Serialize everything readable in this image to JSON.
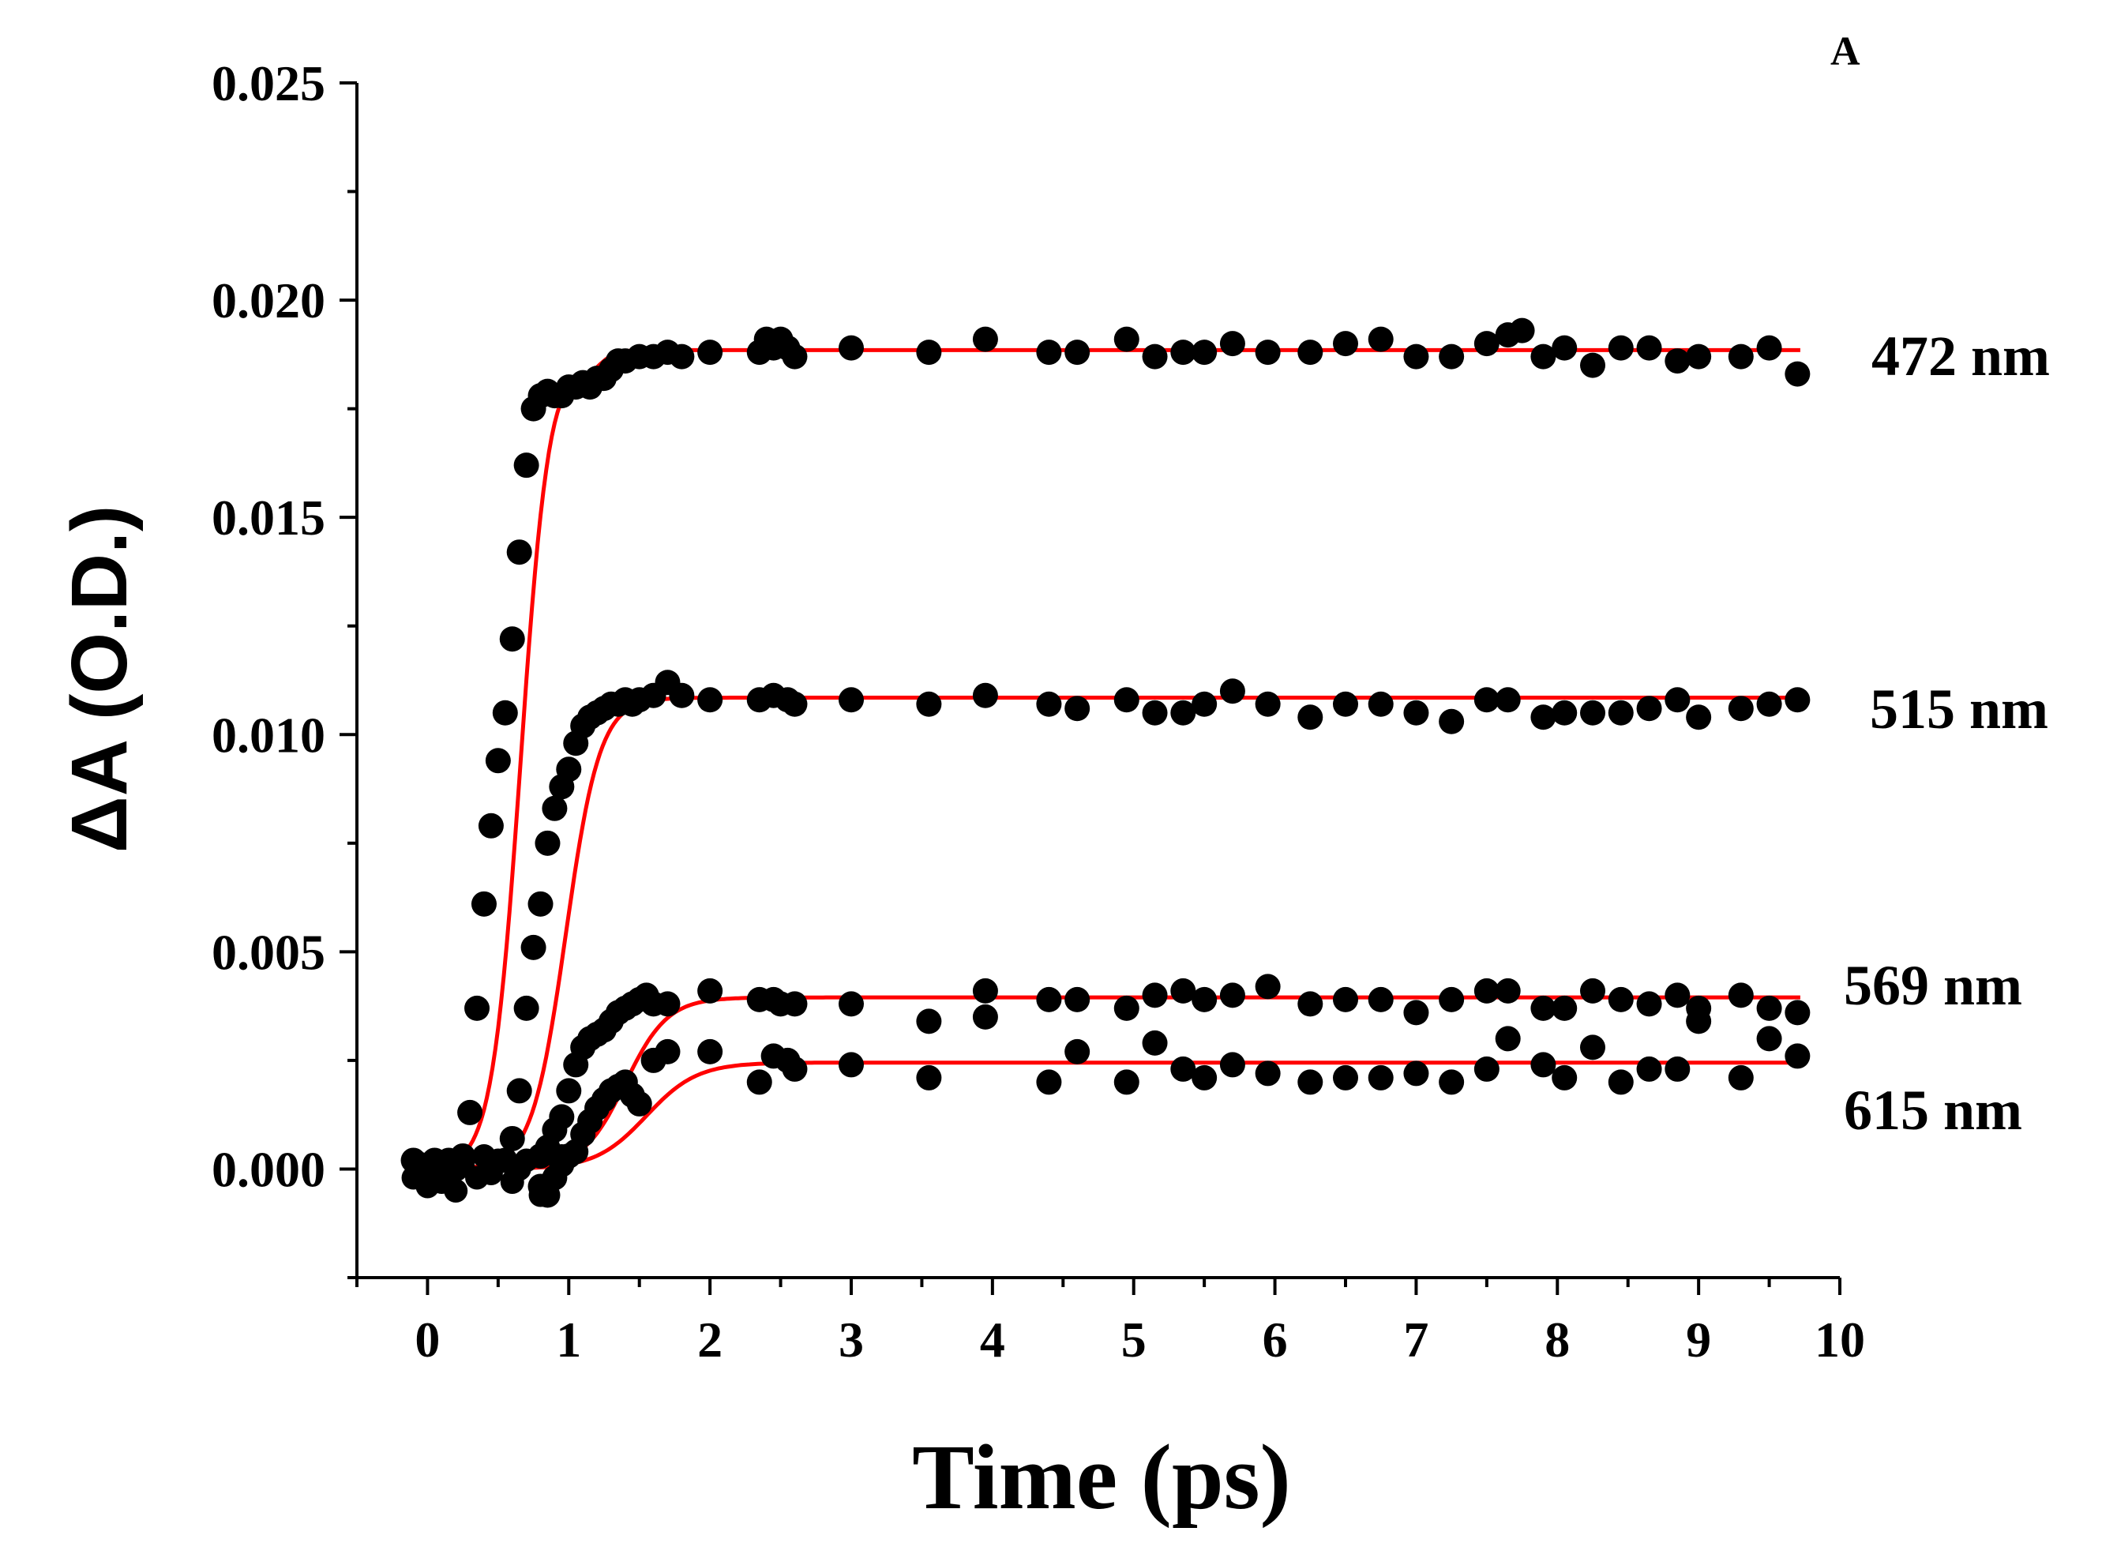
{
  "chart_data": {
    "type": "scatter",
    "panel_label": "A",
    "title": "",
    "xlabel": "Time (ps)",
    "ylabel": "ΔA (O.D.)",
    "xlim": [
      -0.5,
      10
    ],
    "ylim": [
      -0.0025,
      0.025
    ],
    "x_ticks": [
      0,
      1,
      2,
      3,
      4,
      5,
      6,
      7,
      8,
      9,
      10
    ],
    "x_tick_labels": [
      "0",
      "1",
      "2",
      "3",
      "4",
      "5",
      "6",
      "7",
      "8",
      "9",
      "10"
    ],
    "y_ticks": [
      0.0,
      0.005,
      0.01,
      0.015,
      0.02,
      0.025
    ],
    "y_tick_labels": [
      "0.000",
      "0.005",
      "0.010",
      "0.015",
      "0.020",
      "0.025"
    ],
    "grid": false,
    "marker_color": "#000000",
    "fit_color": "#ff0000",
    "series": [
      {
        "name": "472 nm",
        "label": "472 nm",
        "x": [
          -0.1,
          -0.05,
          0,
          0.05,
          0.1,
          0.15,
          0.2,
          0.25,
          0.3,
          0.35,
          0.4,
          0.45,
          0.5,
          0.55,
          0.6,
          0.65,
          0.7,
          0.75,
          0.8,
          0.85,
          0.9,
          0.95,
          1.0,
          1.05,
          1.1,
          1.15,
          1.2,
          1.25,
          1.3,
          1.35,
          1.4,
          1.5,
          1.6,
          1.7,
          1.8,
          2.0,
          2.35,
          2.4,
          2.45,
          2.5,
          2.55,
          2.6,
          3.0,
          3.55,
          3.95,
          4.4,
          4.6,
          4.95,
          5.15,
          5.35,
          5.5,
          5.7,
          5.95,
          6.25,
          6.5,
          6.75,
          7.0,
          7.25,
          7.5,
          7.65,
          7.75,
          7.9,
          8.05,
          8.25,
          8.45,
          8.65,
          8.85,
          9.0,
          9.3,
          9.5,
          9.7
        ],
        "y": [
          0.0002,
          0.0001,
          0.0,
          0.0002,
          0.0001,
          0.0002,
          0.0,
          0.0003,
          0.0013,
          0.0037,
          0.0061,
          0.0079,
          0.0094,
          0.0105,
          0.0122,
          0.0142,
          0.0162,
          0.0175,
          0.0178,
          0.0179,
          0.0178,
          0.0178,
          0.018,
          0.018,
          0.0181,
          0.018,
          0.0182,
          0.0182,
          0.0184,
          0.0186,
          0.0186,
          0.0187,
          0.0187,
          0.0188,
          0.0187,
          0.0188,
          0.0188,
          0.0191,
          0.0189,
          0.0191,
          0.0189,
          0.0187,
          0.0189,
          0.0188,
          0.0191,
          0.0188,
          0.0188,
          0.0191,
          0.0187,
          0.0188,
          0.0188,
          0.019,
          0.0188,
          0.0188,
          0.019,
          0.0191,
          0.0187,
          0.0187,
          0.019,
          0.0192,
          0.0193,
          0.0187,
          0.0189,
          0.0185,
          0.0189,
          0.0189,
          0.0186,
          0.0187,
          0.0187,
          0.0189,
          0.0183
        ],
        "fit": {
          "baseline": 0.0,
          "amplitude": 0.01885,
          "t0": 0.32,
          "tau": 0.17,
          "plateau_dip": 0.0008
        }
      },
      {
        "name": "515 nm",
        "label": "515 nm",
        "x": [
          0.55,
          0.6,
          0.65,
          0.7,
          0.75,
          0.8,
          0.85,
          0.9,
          0.95,
          1.0,
          1.05,
          1.1,
          1.15,
          1.2,
          1.25,
          1.3,
          1.35,
          1.4,
          1.45,
          1.5,
          1.6,
          1.7,
          1.8,
          2.0,
          2.35,
          2.45,
          2.55,
          2.6,
          3.0,
          3.55,
          3.95,
          4.4,
          4.6,
          4.95,
          5.15,
          5.35,
          5.5,
          5.7,
          5.95,
          6.25,
          6.5,
          6.75,
          7.0,
          7.25,
          7.5,
          7.65,
          7.9,
          8.05,
          8.25,
          8.45,
          8.65,
          8.85,
          9.0,
          9.3,
          9.5,
          9.7
        ],
        "y": [
          0.0002,
          0.0007,
          0.0018,
          0.0037,
          0.0051,
          0.0061,
          0.0075,
          0.0083,
          0.0088,
          0.0092,
          0.0098,
          0.0102,
          0.0104,
          0.0105,
          0.0106,
          0.0107,
          0.0107,
          0.0108,
          0.0107,
          0.0108,
          0.0109,
          0.0112,
          0.0109,
          0.0108,
          0.0108,
          0.0109,
          0.0108,
          0.0107,
          0.0108,
          0.0107,
          0.0109,
          0.0107,
          0.0106,
          0.0108,
          0.0105,
          0.0105,
          0.0107,
          0.011,
          0.0107,
          0.0104,
          0.0107,
          0.0107,
          0.0105,
          0.0103,
          0.0108,
          0.0108,
          0.0104,
          0.0105,
          0.0105,
          0.0105,
          0.0106,
          0.0108,
          0.0104,
          0.0106,
          0.0107,
          0.0108
        ],
        "fit": {
          "baseline": 0.0,
          "amplitude": 0.01085,
          "t0": 0.58,
          "tau": 0.2,
          "plateau_dip": 0.0
        }
      },
      {
        "name": "569 nm",
        "label": "569 nm",
        "x": [
          0.8,
          0.85,
          0.9,
          0.95,
          1.0,
          1.05,
          1.1,
          1.15,
          1.2,
          1.25,
          1.3,
          1.35,
          1.4,
          1.45,
          1.5,
          1.55,
          1.6,
          1.7,
          2.0,
          2.35,
          2.45,
          2.5,
          2.6,
          3.0,
          3.55,
          3.95,
          4.4,
          4.6,
          4.95,
          5.15,
          5.35,
          5.5,
          5.7,
          5.95,
          6.25,
          6.5,
          6.75,
          7.0,
          7.25,
          7.5,
          7.65,
          7.9,
          8.05,
          8.25,
          8.45,
          8.65,
          8.85,
          9.0,
          9.3,
          9.5,
          9.7
        ],
        "y": [
          0.0003,
          0.0005,
          0.0009,
          0.0012,
          0.0018,
          0.0024,
          0.0028,
          0.003,
          0.0031,
          0.0032,
          0.0034,
          0.0036,
          0.0037,
          0.0038,
          0.0039,
          0.004,
          0.0038,
          0.0038,
          0.0041,
          0.0039,
          0.0039,
          0.0038,
          0.0038,
          0.0038,
          0.0034,
          0.0041,
          0.0039,
          0.0039,
          0.0037,
          0.004,
          0.0041,
          0.0039,
          0.004,
          0.0042,
          0.0038,
          0.0039,
          0.0039,
          0.0036,
          0.0039,
          0.0041,
          0.0041,
          0.0037,
          0.0037,
          0.0041,
          0.0039,
          0.0038,
          0.004,
          0.0037,
          0.004,
          0.0037,
          0.0036
        ],
        "fit": {
          "baseline": 0.0,
          "amplitude": 0.00395,
          "t0": 0.9,
          "tau": 0.25,
          "plateau_dip": 0.0
        }
      },
      {
        "name": "615 nm",
        "label": "615 nm",
        "x": [
          0.8,
          0.85,
          0.9,
          0.95,
          1.0,
          1.05,
          1.1,
          1.15,
          1.2,
          1.25,
          1.3,
          1.35,
          1.4,
          1.45,
          1.5,
          1.6,
          1.7,
          2.0,
          2.35,
          2.45,
          2.55,
          2.6,
          3.0,
          3.55,
          3.95,
          4.4,
          4.6,
          4.95,
          5.15,
          5.35,
          5.5,
          5.7,
          5.95,
          6.25,
          6.5,
          6.75,
          7.0,
          7.25,
          7.5,
          7.65,
          7.9,
          8.05,
          8.25,
          8.45,
          8.65,
          8.85,
          9.0,
          9.3,
          9.5,
          9.7
        ],
        "y": [
          -0.0004,
          -0.0006,
          -0.0002,
          0.0001,
          0.0003,
          0.0004,
          0.0008,
          0.0011,
          0.0014,
          0.0016,
          0.0018,
          0.0019,
          0.002,
          0.0017,
          0.0015,
          0.0025,
          0.0027,
          0.0027,
          0.002,
          0.0026,
          0.0025,
          0.0023,
          0.0024,
          0.0021,
          0.0035,
          0.002,
          0.0027,
          0.002,
          0.0029,
          0.0023,
          0.0021,
          0.0024,
          0.0022,
          0.002,
          0.0021,
          0.0021,
          0.0022,
          0.002,
          0.0023,
          0.003,
          0.0024,
          0.0021,
          0.0028,
          0.002,
          0.0023,
          0.0023,
          0.0034,
          0.0021,
          0.003,
          0.0026
        ],
        "fit": {
          "baseline": 0.0,
          "amplitude": 0.00245,
          "t0": 0.95,
          "tau": 0.3,
          "plateau_dip": 0.0
        }
      }
    ],
    "baseline_noise": {
      "x": [
        -0.1,
        -0.05,
        0.0,
        0.05,
        0.1,
        0.15,
        0.2,
        0.25,
        0.35,
        0.4,
        0.45,
        0.5,
        0.6,
        0.65,
        0.7,
        0.8,
        0.85,
        0.9,
        0.95
      ],
      "y": [
        -0.0002,
        0.0001,
        -0.0004,
        0.0,
        -0.0003,
        0.0002,
        -0.0005,
        0.0001,
        -0.0002,
        0.0003,
        -0.0001,
        0.0002,
        -0.0003,
        0.0,
        0.0002,
        -0.0006,
        0.0004,
        -0.0002,
        0.0003
      ]
    }
  }
}
